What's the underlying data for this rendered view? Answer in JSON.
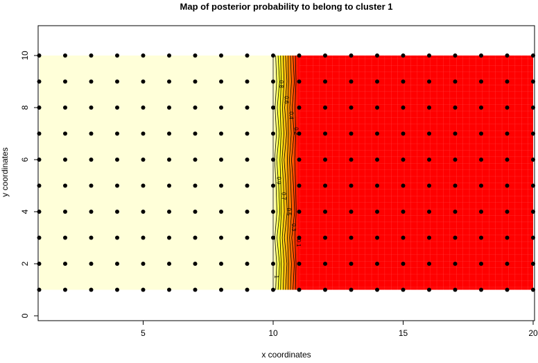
{
  "chart_data": {
    "type": "heatmap",
    "title": "Map of posterior probability to belong to cluster  1",
    "xlabel": "x coordinates",
    "ylabel": "y coordinates",
    "xlim": [
      1,
      20
    ],
    "ylim": [
      -0.1,
      11.2
    ],
    "xticks": [
      5,
      10,
      15,
      20
    ],
    "yticks": [
      0,
      2,
      4,
      6,
      8,
      10
    ],
    "grid": false,
    "points": {
      "x": [
        1,
        2,
        3,
        4,
        5,
        6,
        7,
        8,
        9,
        10,
        11,
        12,
        13,
        14,
        15,
        16,
        17,
        18,
        19,
        20
      ],
      "y": [
        1,
        2,
        3,
        4,
        5,
        6,
        7,
        8,
        9,
        10
      ]
    },
    "probability_profile": {
      "x": [
        1,
        10,
        11,
        20
      ],
      "p": [
        1,
        1,
        0,
        0
      ]
    },
    "contour_levels": [
      1,
      0.9,
      0.8,
      0.7,
      0.6,
      0.5,
      0.4,
      0.3,
      0.2,
      0.1
    ],
    "contour_labels": [
      "1",
      "0.9",
      "0.8",
      "0.7",
      "0.6",
      "0.5",
      "0.4",
      "0.3",
      "0.2",
      "0.1"
    ],
    "colors": {
      "high": "#FFFFD9",
      "mid": "#FFFF00",
      "midlow": "#FF8C00",
      "low": "#FF0000",
      "points": "#000000",
      "contour": "#000000"
    }
  }
}
